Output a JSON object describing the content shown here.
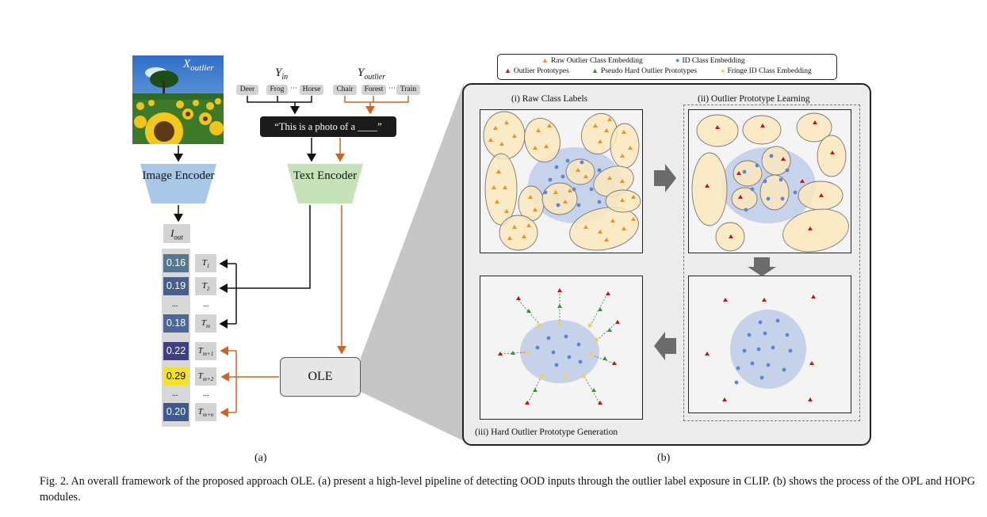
{
  "left": {
    "x_outlier_label": "X",
    "x_outlier_sub": "outlier",
    "y_in_label": "Y",
    "y_in_sub": "in",
    "y_outlier_label": "Y",
    "y_outlier_sub": "outlier",
    "id_classes": [
      "Deer",
      "Frog",
      "···",
      "Horse"
    ],
    "outlier_classes": [
      "Chair",
      "Forest",
      "···",
      "Train"
    ],
    "prompt": "“This is a photo of a ____”",
    "image_encoder": "Image Encoder",
    "text_encoder": "Text Encoder",
    "i_out_label": "I",
    "i_out_sub": "out",
    "ole": "OLE",
    "scores": [
      {
        "value": "0.16",
        "color": "#56788f",
        "t": "T",
        "sub": "1"
      },
      {
        "value": "0.19",
        "color": "#495e8a",
        "t": "T",
        "sub": "2"
      },
      {
        "value": "0.18",
        "color": "#4c6996",
        "t": "T",
        "sub": "m"
      },
      {
        "value": "0.22",
        "color": "#3f3f81",
        "t": "T",
        "sub": "m+1"
      },
      {
        "value": "0.29",
        "color": "#f4e22a",
        "t": "T",
        "sub": "m+2"
      },
      {
        "value": "0.20",
        "color": "#3f5a8c",
        "t": "T",
        "sub": "m+n"
      }
    ],
    "ellipsis": "...",
    "sublabel": "(a)"
  },
  "legend": {
    "raw_outlier": "Raw Outlier Class Embedding",
    "id_class": "ID Class Embedding",
    "outlier_proto": "Outlier Prototypes",
    "pseudo_hard": "Pseudo Hard Outlier Prototypes",
    "fringe_id": "Fringe ID Class Embedding"
  },
  "panels": {
    "raw": "(i) Raw Class Labels",
    "opl": "(ii) Outlier Prototype Learning",
    "hopg": "(iii) Hard Outlier Prototype Generation"
  },
  "right_sublabel": "(b)",
  "caption": "Fig. 2.  An overall framework of the proposed approach OLE. (a) present a high-level pipeline of detecting OOD inputs through the outlier label exposure in CLIP. (b) shows the process of the OPL and HOPG modules.",
  "colors": {
    "image_encoder": "#a9c8e8",
    "text_encoder": "#c6e2b8",
    "orange": "#e8912b",
    "blue": "#5b86d6",
    "red": "#c0161a",
    "green": "#3f8c3a",
    "yellow": "#f3cf5f",
    "ellipse_fill": "#fbe8bd",
    "id_region": "#bccbe8",
    "arrow_orange": "#cf6420"
  }
}
